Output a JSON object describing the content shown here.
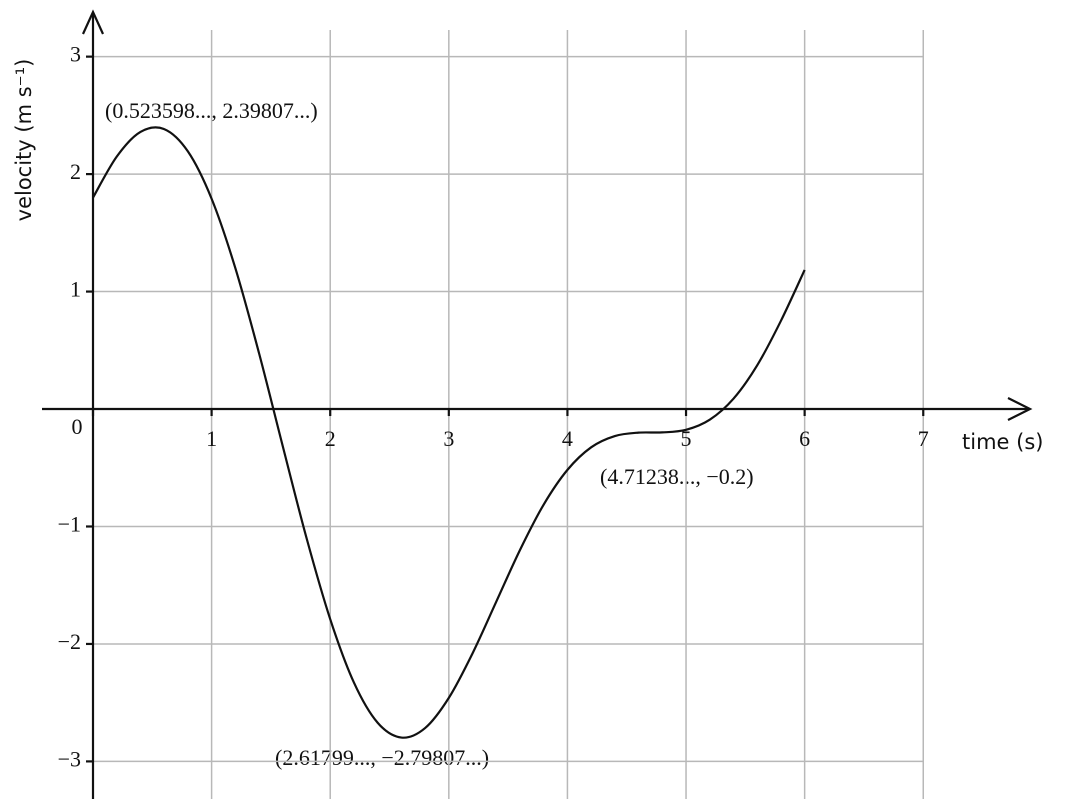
{
  "chart_data": {
    "type": "line",
    "xlabel": "time (s)",
    "ylabel": "velocity (m s⁻¹)",
    "x": [
      0,
      0.2,
      0.4,
      0.6,
      0.8,
      1.0,
      1.2,
      1.4,
      1.6,
      1.8,
      2.0,
      2.2,
      2.4,
      2.6,
      2.8,
      3.0,
      3.2,
      3.4,
      3.6,
      3.8,
      4.0,
      4.2,
      4.4,
      4.6,
      4.8,
      5.0,
      5.2,
      5.4,
      5.6,
      5.8,
      6.0
    ],
    "series": [
      {
        "color": "#111111",
        "values": [
          1.8,
          2.149,
          2.359,
          2.383,
          2.193,
          1.79,
          1.2,
          0.475,
          -0.317,
          -1.097,
          -1.789,
          -2.329,
          -2.671,
          -2.797,
          -2.716,
          -2.459,
          -2.08,
          -1.64,
          -1.2,
          -0.813,
          -0.518,
          -0.326,
          -0.23,
          -0.201,
          -0.199,
          -0.177,
          -0.091,
          0.088,
          0.372,
          0.751,
          1.184
        ]
      }
    ],
    "xlim": [
      -0.43,
      7.9
    ],
    "ylim": [
      -3.32,
      3.38
    ],
    "xticks": [
      0,
      1,
      2,
      3,
      4,
      5,
      6,
      7
    ],
    "yticks": [
      {
        "value": -3,
        "label": "−3"
      },
      {
        "value": -2,
        "label": "−2"
      },
      {
        "value": -1,
        "label": "−1"
      },
      1,
      2,
      3
    ],
    "grid": true,
    "annotations": [
      "(0.523598..., 2.39807...)",
      "(4.71238..., −0.2)",
      "(2.61799..., −2.79807...)"
    ]
  }
}
